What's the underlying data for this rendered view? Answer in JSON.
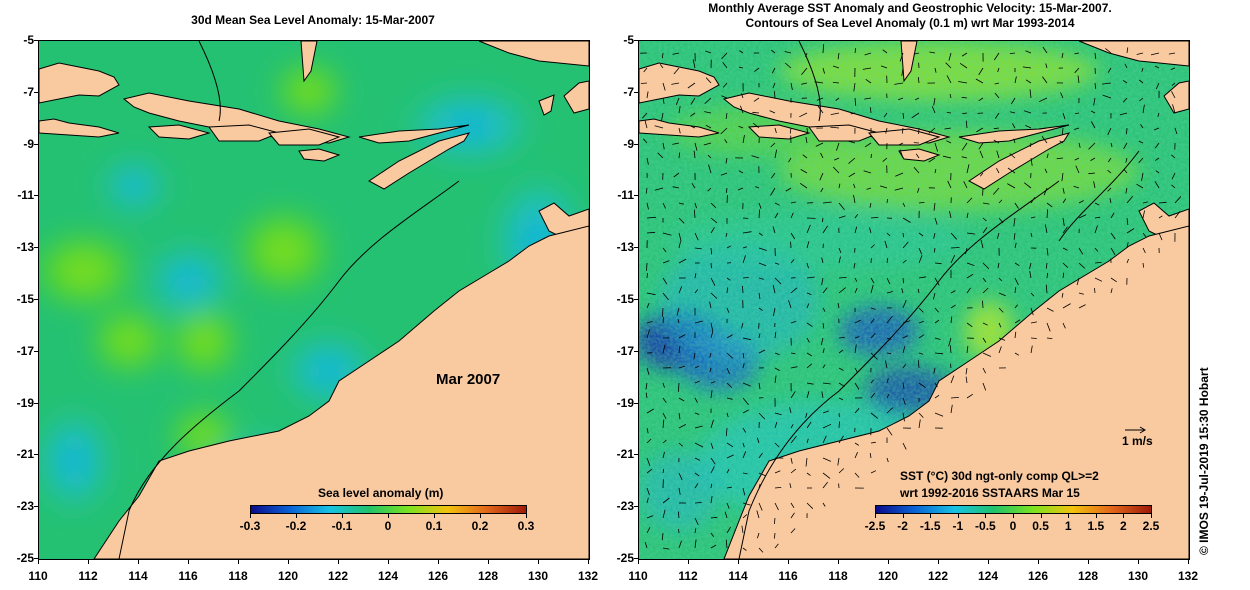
{
  "left_map": {
    "title": "30d Mean Sea Level Anomaly: 15-Mar-2007",
    "period_label": "Mar 2007",
    "colorbar": {
      "title": "Sea level anomaly (m)",
      "ticks": [
        "-0.3",
        "-0.2",
        "-0.1",
        "0",
        "0.1",
        "0.2",
        "0.3"
      ]
    }
  },
  "right_map": {
    "title_line1": "Monthly Average SST Anomaly  and Geostrophic Velocity: 15-Mar-2007.",
    "title_line2": "Contours of Sea Level Anomaly (0.1 m) wrt Mar 1993-2014",
    "colorbar": {
      "title_line1": "SST (°C) 30d ngt-only comp QL>=2",
      "title_line2": "wrt 1992-2016 SSTAARS Mar 15",
      "ticks": [
        "-2.5",
        "-2",
        "-1.5",
        "-1",
        "-0.5",
        "0",
        "0.5",
        "1",
        "1.5",
        "2",
        "2.5"
      ]
    },
    "velocity_reference": "1 m/s"
  },
  "axes": {
    "latitudes": [
      "-5",
      "-7",
      "-9",
      "-11",
      "-13",
      "-15",
      "-17",
      "-19",
      "-21",
      "-23",
      "-25"
    ],
    "longitudes": [
      "110",
      "112",
      "114",
      "116",
      "118",
      "120",
      "122",
      "124",
      "126",
      "128",
      "130",
      "132"
    ],
    "lat_range": [
      -25,
      -5
    ],
    "lon_range": [
      110,
      132
    ]
  },
  "copyright": "© IMOS 19-Jul-2019 15:30 Hobart",
  "colors": {
    "land": "#f9c9a0",
    "ocean_base": "#22c07a",
    "slanom_scale": [
      "#0b0b8c",
      "#0a63d6",
      "#17c2e4",
      "#1fc26a",
      "#7be320",
      "#f2c20e",
      "#e2661a",
      "#9e1a0a"
    ],
    "sst_scale": [
      "#0b0b8c",
      "#0a63d6",
      "#17c2e4",
      "#1fc26a",
      "#7be320",
      "#f2c20e",
      "#e2661a",
      "#9e1a0a"
    ]
  }
}
